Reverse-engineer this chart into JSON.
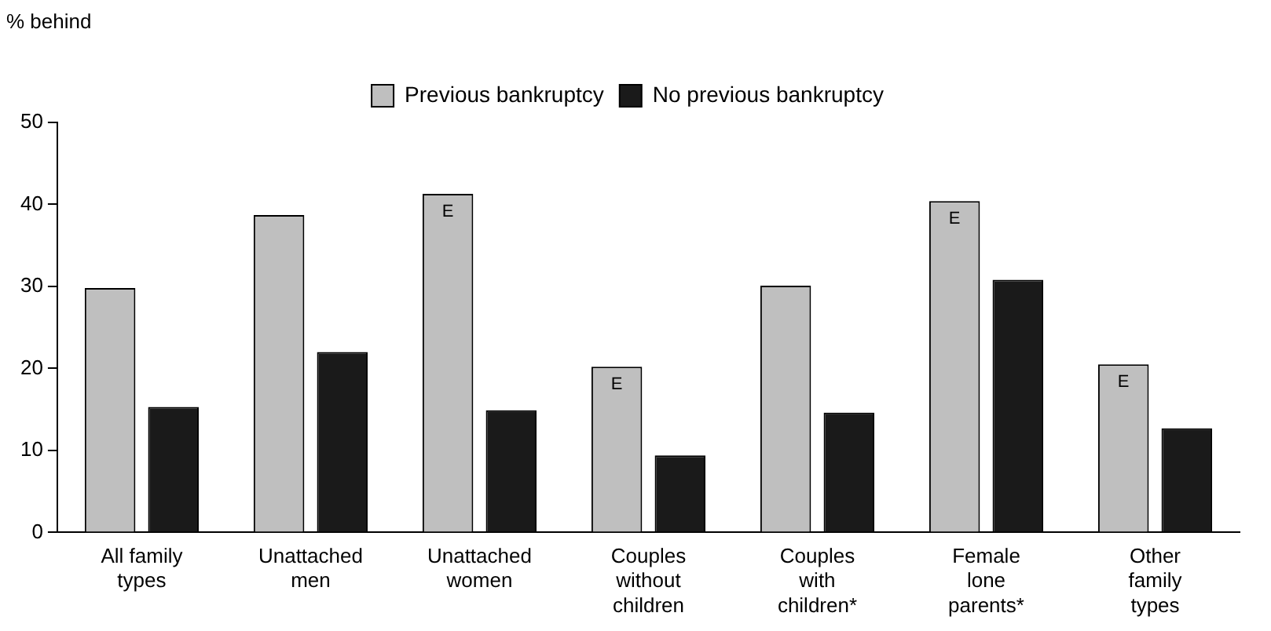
{
  "chart_data": {
    "type": "bar",
    "ylabel": "% behind",
    "categories": [
      "All family types",
      "Unattached men",
      "Unattached women",
      "Couples without children",
      "Couples with children*",
      "Female lone parents*",
      "Other family types"
    ],
    "series": [
      {
        "name": "Previous bankruptcy",
        "color": "#bfbfbf",
        "values": [
          29.8,
          38.7,
          41.3,
          20.2,
          30.1,
          40.4,
          20.5
        ],
        "value_labels": [
          null,
          null,
          "E",
          "E",
          null,
          "E",
          "E"
        ]
      },
      {
        "name": "No previous bankruptcy",
        "color": "#1a1a1a",
        "values": [
          15.3,
          22,
          14.9,
          9.4,
          14.6,
          30.8,
          12.7
        ]
      }
    ],
    "ylim": [
      0,
      50
    ],
    "yticks": [
      0,
      10,
      20,
      30,
      40,
      50
    ],
    "grid": false,
    "legend": "top"
  }
}
